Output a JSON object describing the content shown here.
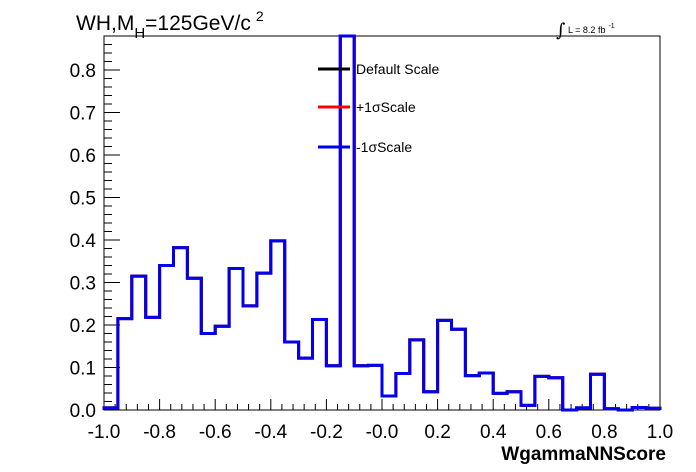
{
  "chart_data": {
    "type": "line",
    "title_main": "WH,M",
    "title_sub": "H",
    "title_rest": "=125GeV/c",
    "title_sup": "2",
    "lumi_integral": "∫",
    "lumi_text": "L = 8.2 fb",
    "lumi_sup": "-1",
    "xlabel": "WgammaNNScore",
    "ylabel": "",
    "xlim": [
      -1.0,
      1.0
    ],
    "ylim": [
      0,
      0.88
    ],
    "x_ticks": [
      -1.0,
      -0.8,
      -0.6,
      -0.4,
      -0.2,
      0.0,
      0.2,
      0.4,
      0.6,
      0.8,
      1.0
    ],
    "x_tick_labels": [
      "-1.0",
      "-0.8",
      "-0.6",
      "-0.4",
      "-0.2",
      "-0.0",
      "0.2",
      "0.4",
      "0.6",
      "0.8",
      "1.0"
    ],
    "y_ticks": [
      0.0,
      0.1,
      0.2,
      0.3,
      0.4,
      0.5,
      0.6,
      0.7,
      0.8
    ],
    "y_tick_labels": [
      "0.0",
      "0.1",
      "0.2",
      "0.3",
      "0.4",
      "0.5",
      "0.6",
      "0.7",
      "0.8"
    ],
    "legend_position": "top-center",
    "bin_edges": [
      -1.0,
      -0.95,
      -0.9,
      -0.85,
      -0.8,
      -0.75,
      -0.7,
      -0.65,
      -0.6,
      -0.55,
      -0.5,
      -0.45,
      -0.4,
      -0.35,
      -0.3,
      -0.25,
      -0.2,
      -0.15,
      -0.1,
      -0.05,
      0.0,
      0.05,
      0.1,
      0.15,
      0.2,
      0.25,
      0.3,
      0.35,
      0.4,
      0.45,
      0.5,
      0.55,
      0.6,
      0.65,
      0.7,
      0.75,
      0.8,
      0.85,
      0.9,
      0.95,
      1.0
    ],
    "series": [
      {
        "name": "Default Scale",
        "color": "#000000",
        "values": [
          0.005,
          0.215,
          0.315,
          0.218,
          0.34,
          0.382,
          0.31,
          0.18,
          0.197,
          0.333,
          0.245,
          0.322,
          0.398,
          0.16,
          0.122,
          0.213,
          0.104,
          0.88,
          0.104,
          0.105,
          0.033,
          0.086,
          0.165,
          0.043,
          0.211,
          0.19,
          0.081,
          0.087,
          0.039,
          0.043,
          0.011,
          0.079,
          0.076,
          0.0,
          0.005,
          0.084,
          0.003,
          0.0,
          0.006,
          0.004
        ]
      },
      {
        "name": "+1σScale",
        "color": "#ff0000",
        "values": [
          0.005,
          0.215,
          0.315,
          0.218,
          0.34,
          0.382,
          0.31,
          0.18,
          0.197,
          0.333,
          0.245,
          0.322,
          0.398,
          0.16,
          0.122,
          0.213,
          0.104,
          0.88,
          0.104,
          0.105,
          0.033,
          0.086,
          0.165,
          0.043,
          0.211,
          0.19,
          0.081,
          0.087,
          0.039,
          0.043,
          0.011,
          0.079,
          0.076,
          0.0,
          0.005,
          0.084,
          0.003,
          0.0,
          0.006,
          0.004
        ]
      },
      {
        "name": "-1σScale",
        "color": "#0000ee",
        "values": [
          0.005,
          0.215,
          0.315,
          0.218,
          0.34,
          0.382,
          0.31,
          0.18,
          0.197,
          0.333,
          0.245,
          0.322,
          0.398,
          0.16,
          0.122,
          0.213,
          0.104,
          0.88,
          0.104,
          0.105,
          0.033,
          0.086,
          0.165,
          0.043,
          0.211,
          0.19,
          0.081,
          0.087,
          0.039,
          0.043,
          0.011,
          0.079,
          0.076,
          0.0,
          0.005,
          0.084,
          0.003,
          0.0,
          0.006,
          0.004
        ]
      }
    ]
  }
}
